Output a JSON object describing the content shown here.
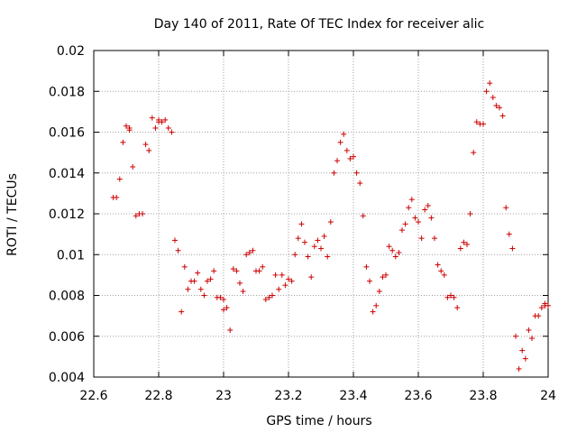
{
  "chart_data": {
    "type": "scatter",
    "title": "Day 140 of 2011, Rate Of TEC Index for receiver alic",
    "xlabel": "GPS time / hours",
    "ylabel": "ROTI / TECUs",
    "xlim": [
      22.6,
      24.0
    ],
    "ylim": [
      0.004,
      0.02
    ],
    "xticks": [
      22.6,
      22.8,
      23.0,
      23.2,
      23.4,
      23.6,
      23.8,
      24.0
    ],
    "xtick_labels": [
      "22.6",
      "22.8",
      "23",
      "23.2",
      "23.4",
      "23.6",
      "23.8",
      "24"
    ],
    "yticks": [
      0.004,
      0.006,
      0.008,
      0.01,
      0.012,
      0.014,
      0.016,
      0.018,
      0.02
    ],
    "ytick_labels": [
      "0.004",
      "0.006",
      "0.008",
      "0.01",
      "0.012",
      "0.014",
      "0.016",
      "0.018",
      "0.02"
    ],
    "grid": true,
    "marker": "+",
    "color": "#cc0000",
    "series": [
      {
        "name": "ROTI",
        "points": [
          [
            22.66,
            0.0128
          ],
          [
            22.67,
            0.0128
          ],
          [
            22.68,
            0.0137
          ],
          [
            22.69,
            0.0155
          ],
          [
            22.7,
            0.0163
          ],
          [
            22.71,
            0.0162
          ],
          [
            22.71,
            0.0161
          ],
          [
            22.72,
            0.0143
          ],
          [
            22.73,
            0.0119
          ],
          [
            22.74,
            0.012
          ],
          [
            22.75,
            0.012
          ],
          [
            22.76,
            0.0154
          ],
          [
            22.77,
            0.0151
          ],
          [
            22.78,
            0.0167
          ],
          [
            22.79,
            0.0162
          ],
          [
            22.8,
            0.0165
          ],
          [
            22.8,
            0.0166
          ],
          [
            22.81,
            0.0165
          ],
          [
            22.82,
            0.0166
          ],
          [
            22.83,
            0.0162
          ],
          [
            22.84,
            0.016
          ],
          [
            22.85,
            0.0107
          ],
          [
            22.86,
            0.0102
          ],
          [
            22.87,
            0.0072
          ],
          [
            22.88,
            0.0094
          ],
          [
            22.89,
            0.0083
          ],
          [
            22.9,
            0.0087
          ],
          [
            22.91,
            0.0087
          ],
          [
            22.92,
            0.0091
          ],
          [
            22.93,
            0.0083
          ],
          [
            22.94,
            0.008
          ],
          [
            22.95,
            0.0087
          ],
          [
            22.96,
            0.0088
          ],
          [
            22.97,
            0.0092
          ],
          [
            22.98,
            0.0079
          ],
          [
            22.99,
            0.0079
          ],
          [
            23.0,
            0.0073
          ],
          [
            23.0,
            0.0078
          ],
          [
            23.01,
            0.0074
          ],
          [
            23.02,
            0.0063
          ],
          [
            23.03,
            0.0093
          ],
          [
            23.04,
            0.0092
          ],
          [
            23.05,
            0.0086
          ],
          [
            23.06,
            0.0082
          ],
          [
            23.07,
            0.01
          ],
          [
            23.08,
            0.0101
          ],
          [
            23.09,
            0.0102
          ],
          [
            23.1,
            0.0092
          ],
          [
            23.11,
            0.0092
          ],
          [
            23.12,
            0.0094
          ],
          [
            23.13,
            0.0078
          ],
          [
            23.14,
            0.0079
          ],
          [
            23.15,
            0.008
          ],
          [
            23.16,
            0.009
          ],
          [
            23.17,
            0.0083
          ],
          [
            23.18,
            0.009
          ],
          [
            23.19,
            0.0085
          ],
          [
            23.2,
            0.0088
          ],
          [
            23.21,
            0.0087
          ],
          [
            23.22,
            0.01
          ],
          [
            23.23,
            0.0108
          ],
          [
            23.24,
            0.0115
          ],
          [
            23.25,
            0.0106
          ],
          [
            23.26,
            0.0099
          ],
          [
            23.27,
            0.0089
          ],
          [
            23.28,
            0.0104
          ],
          [
            23.29,
            0.0107
          ],
          [
            23.3,
            0.0103
          ],
          [
            23.31,
            0.0109
          ],
          [
            23.32,
            0.0099
          ],
          [
            23.33,
            0.0116
          ],
          [
            23.34,
            0.014
          ],
          [
            23.35,
            0.0146
          ],
          [
            23.36,
            0.0155
          ],
          [
            23.37,
            0.0159
          ],
          [
            23.38,
            0.0151
          ],
          [
            23.39,
            0.0147
          ],
          [
            23.4,
            0.0148
          ],
          [
            23.41,
            0.014
          ],
          [
            23.42,
            0.0135
          ],
          [
            23.43,
            0.0119
          ],
          [
            23.44,
            0.0094
          ],
          [
            23.45,
            0.0087
          ],
          [
            23.46,
            0.0072
          ],
          [
            23.47,
            0.0075
          ],
          [
            23.48,
            0.0082
          ],
          [
            23.49,
            0.0089
          ],
          [
            23.5,
            0.009
          ],
          [
            23.51,
            0.0104
          ],
          [
            23.52,
            0.0102
          ],
          [
            23.53,
            0.0099
          ],
          [
            23.54,
            0.0101
          ],
          [
            23.55,
            0.0112
          ],
          [
            23.56,
            0.0115
          ],
          [
            23.57,
            0.0123
          ],
          [
            23.58,
            0.0127
          ],
          [
            23.59,
            0.0118
          ],
          [
            23.6,
            0.0116
          ],
          [
            23.61,
            0.0108
          ],
          [
            23.62,
            0.0122
          ],
          [
            23.63,
            0.0124
          ],
          [
            23.64,
            0.0118
          ],
          [
            23.65,
            0.0108
          ],
          [
            23.66,
            0.0095
          ],
          [
            23.67,
            0.0092
          ],
          [
            23.68,
            0.009
          ],
          [
            23.69,
            0.0079
          ],
          [
            23.7,
            0.008
          ],
          [
            23.71,
            0.0079
          ],
          [
            23.72,
            0.0074
          ],
          [
            23.73,
            0.0103
          ],
          [
            23.74,
            0.0106
          ],
          [
            23.75,
            0.0105
          ],
          [
            23.76,
            0.012
          ],
          [
            23.77,
            0.015
          ],
          [
            23.78,
            0.0165
          ],
          [
            23.79,
            0.0164
          ],
          [
            23.8,
            0.0164
          ],
          [
            23.81,
            0.018
          ],
          [
            23.82,
            0.0184
          ],
          [
            23.83,
            0.0177
          ],
          [
            23.84,
            0.0173
          ],
          [
            23.85,
            0.0172
          ],
          [
            23.86,
            0.0168
          ],
          [
            23.87,
            0.0123
          ],
          [
            23.88,
            0.011
          ],
          [
            23.89,
            0.0103
          ],
          [
            23.9,
            0.006
          ],
          [
            23.91,
            0.0044
          ],
          [
            23.92,
            0.0053
          ],
          [
            23.93,
            0.0049
          ],
          [
            23.94,
            0.0063
          ],
          [
            23.95,
            0.0059
          ],
          [
            23.96,
            0.007
          ],
          [
            23.97,
            0.007
          ],
          [
            23.98,
            0.0074
          ],
          [
            23.99,
            0.0075
          ],
          [
            23.99,
            0.0076
          ],
          [
            24.0,
            0.0075
          ]
        ]
      }
    ]
  }
}
